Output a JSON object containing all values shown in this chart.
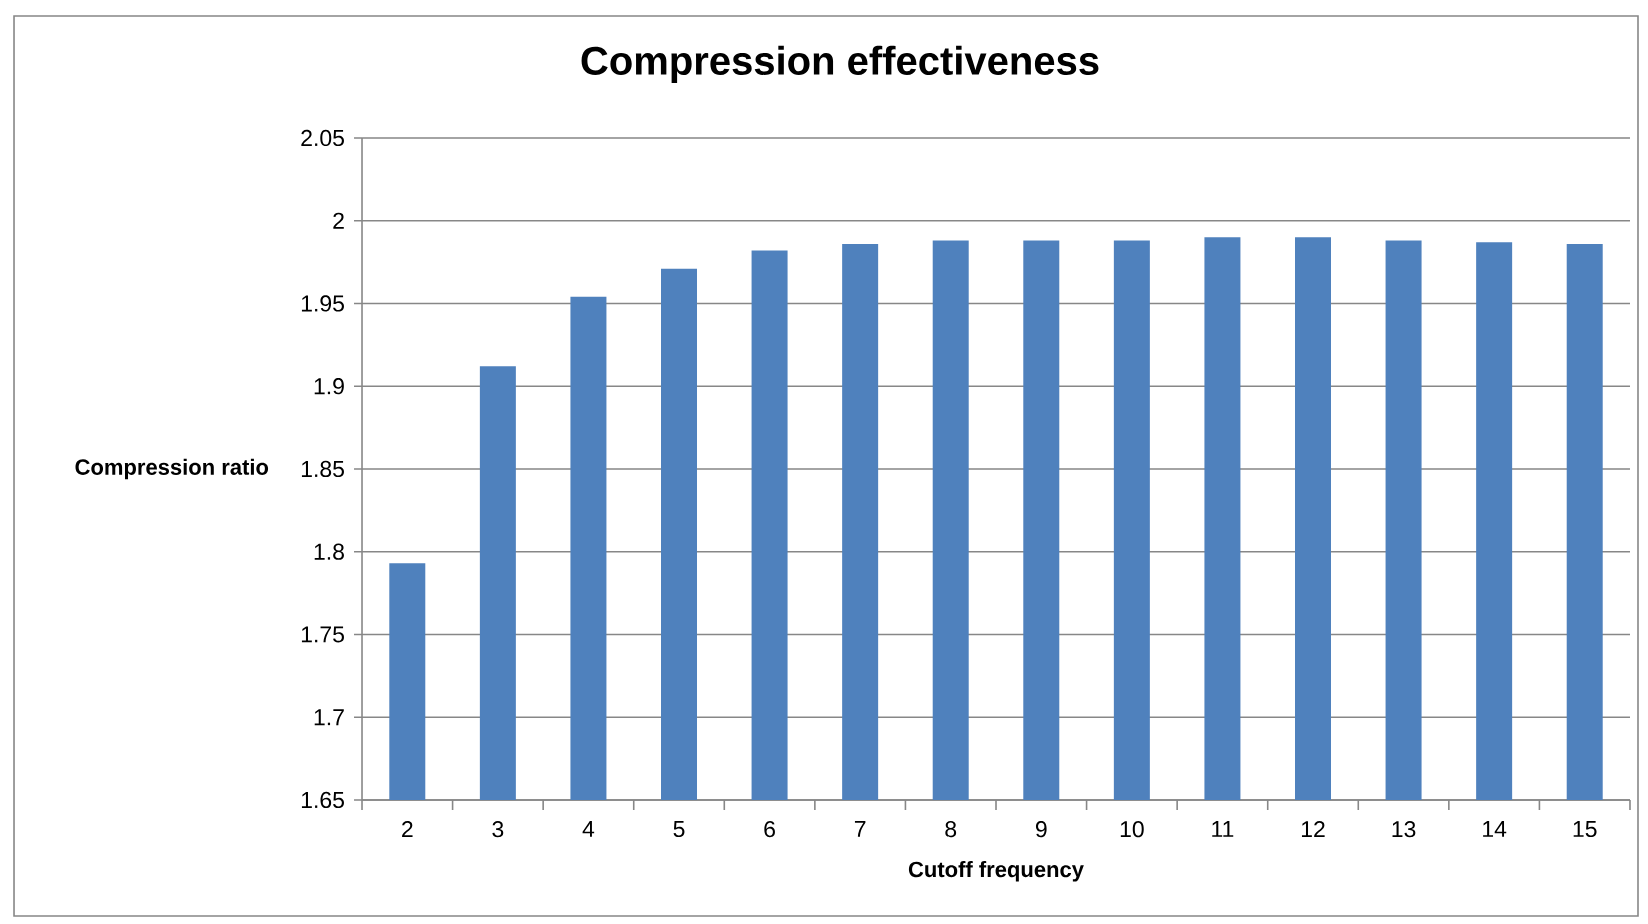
{
  "chart_data": {
    "type": "bar",
    "title": "Compression effectiveness",
    "xlabel": "Cutoff frequency",
    "ylabel": "Compression ratio",
    "categories": [
      "2",
      "3",
      "4",
      "5",
      "6",
      "7",
      "8",
      "9",
      "10",
      "11",
      "12",
      "13",
      "14",
      "15"
    ],
    "values": [
      1.793,
      1.912,
      1.954,
      1.971,
      1.982,
      1.986,
      1.988,
      1.988,
      1.988,
      1.99,
      1.99,
      1.988,
      1.987,
      1.986
    ],
    "color": "#4f81bd",
    "ylim": [
      1.65,
      2.05
    ],
    "yticks": [
      1.65,
      1.7,
      1.75,
      1.8,
      1.85,
      1.9,
      1.95,
      2,
      2.05
    ],
    "grid": "y"
  }
}
